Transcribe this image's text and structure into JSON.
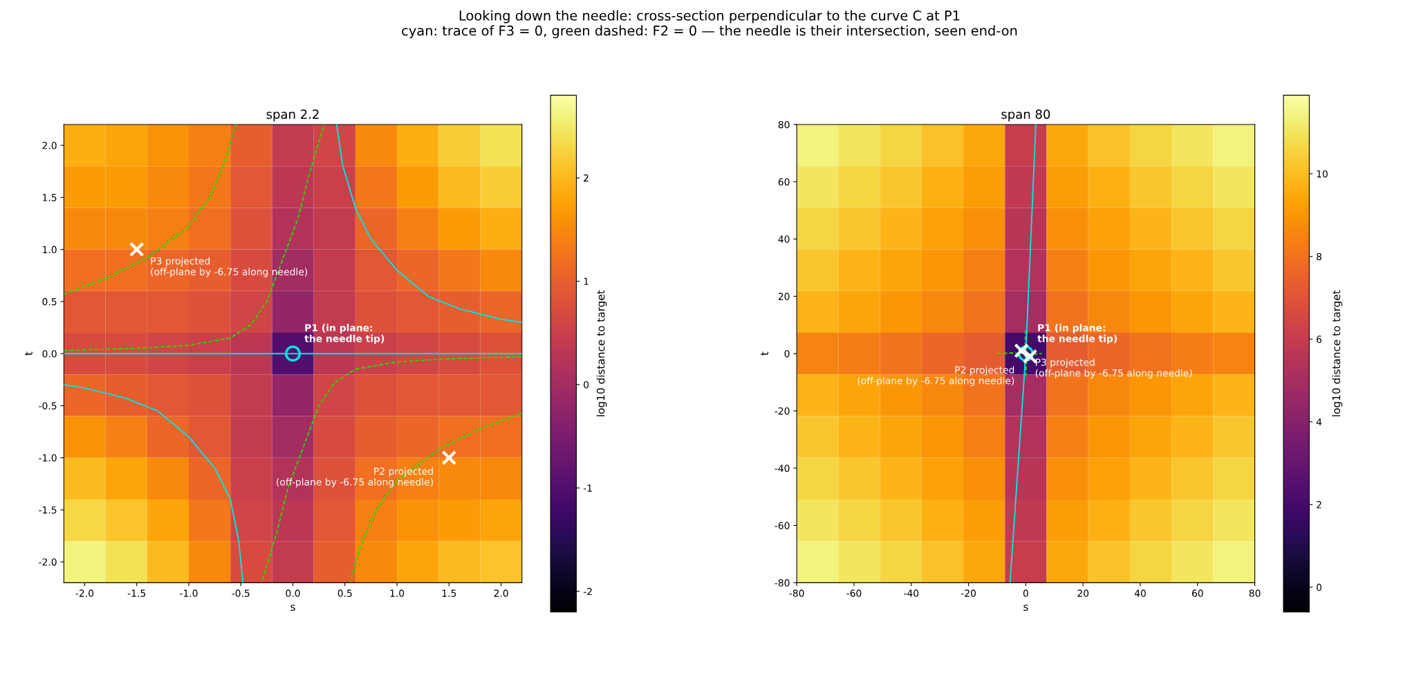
{
  "chart_data": [
    {
      "type": "heatmap",
      "subtitle": "Looking down the needle: cross-section perpendicular to the curve C at P1\ncyan: trace of F3 = 0, green dashed: F2 = 0 — the needle is their intersection, seen end-on",
      "title": "span 2.2",
      "xlabel": "s",
      "ylabel": "t",
      "clabel": "log10 distance to target",
      "xlim": [
        -2.2,
        2.2
      ],
      "ylim": [
        -2.2,
        2.2
      ],
      "xticks": [
        {
          "value": -2,
          "label": "-2.0"
        },
        -1.5,
        {
          "value": -1,
          "label": "-1.0"
        },
        -0.5,
        {
          "value": 0,
          "label": "0.0"
        },
        0.5,
        {
          "value": 1,
          "label": "1.0"
        },
        1.5,
        {
          "value": 2,
          "label": "2.0"
        }
      ],
      "yticks": [
        {
          "value": -2,
          "label": "-2.0"
        },
        -1.5,
        {
          "value": -1,
          "label": "-1.0"
        },
        -0.5,
        {
          "value": 0,
          "label": "0.0"
        },
        0.5,
        {
          "value": 1,
          "label": "1.0"
        },
        1.5,
        {
          "value": 2,
          "label": "2.0"
        }
      ],
      "clim": [
        -2.2,
        2.8
      ],
      "cticks": [
        -2,
        -1,
        0,
        1,
        2
      ],
      "cells": [
        [
          1.9,
          1.8,
          1.6,
          1.4,
          1.0,
          0.4,
          0.6,
          1.5,
          1.9,
          2.2,
          2.4
        ],
        [
          1.7,
          1.7,
          1.5,
          1.3,
          0.9,
          0.3,
          0.5,
          1.3,
          1.7,
          2.0,
          2.2
        ],
        [
          1.5,
          1.5,
          1.4,
          1.2,
          0.8,
          0.2,
          0.4,
          1.1,
          1.4,
          1.7,
          1.9
        ],
        [
          1.2,
          1.2,
          1.1,
          1.0,
          0.7,
          0.0,
          0.4,
          0.9,
          1.1,
          1.3,
          1.5
        ],
        [
          0.9,
          0.9,
          0.9,
          0.8,
          0.6,
          -0.2,
          0.4,
          0.8,
          0.9,
          1.0,
          1.1
        ],
        [
          0.7,
          0.7,
          0.6,
          0.5,
          0.3,
          -1.0,
          0.3,
          0.5,
          0.6,
          0.7,
          0.8
        ],
        [
          1.1,
          1.0,
          0.9,
          0.8,
          0.4,
          -0.2,
          0.6,
          0.8,
          0.9,
          0.9,
          0.9
        ],
        [
          1.6,
          1.4,
          1.1,
          0.9,
          0.4,
          0.0,
          0.7,
          1.0,
          1.1,
          1.2,
          1.2
        ],
        [
          2.0,
          1.8,
          1.5,
          1.1,
          0.5,
          0.2,
          0.8,
          1.2,
          1.4,
          1.5,
          1.5
        ],
        [
          2.3,
          2.1,
          1.8,
          1.3,
          0.6,
          0.3,
          0.9,
          1.4,
          1.6,
          1.7,
          1.8
        ],
        [
          2.6,
          2.4,
          2.0,
          1.5,
          0.7,
          0.4,
          1.0,
          1.5,
          1.8,
          2.0,
          2.1
        ]
      ],
      "series": [
        {
          "type": "line",
          "color": "#00e5e5",
          "line_style": "solid",
          "x": [
            -2.2,
            2.2
          ],
          "values": [
            0,
            0
          ]
        },
        {
          "type": "line",
          "color": "#00e5e5",
          "line_style": "solid",
          "x": [
            0.42,
            0.48,
            0.6,
            0.75,
            1.0,
            1.3,
            1.6,
            2.0,
            2.2
          ],
          "values": [
            2.2,
            1.8,
            1.4,
            1.1,
            0.8,
            0.55,
            0.43,
            0.33,
            0.3
          ]
        },
        {
          "type": "line",
          "color": "#00e5e5",
          "line_style": "solid",
          "x": [
            -2.2,
            -2.0,
            -1.6,
            -1.3,
            -1.0,
            -0.75,
            -0.6,
            -0.52,
            -0.48
          ],
          "values": [
            -0.3,
            -0.33,
            -0.43,
            -0.55,
            -0.8,
            -1.1,
            -1.4,
            -1.8,
            -2.2
          ]
        },
        {
          "type": "line",
          "color": "#22dd00",
          "line_style": "dashed",
          "x": [
            -2.2,
            -1.8,
            -1.4,
            -1.0,
            -0.8,
            -0.65,
            -0.55
          ],
          "values": [
            0.57,
            0.72,
            0.92,
            1.22,
            1.5,
            1.85,
            2.2
          ]
        },
        {
          "type": "line",
          "color": "#22dd00",
          "line_style": "dashed",
          "x": [
            -2.2,
            -1.5,
            -1.0,
            -0.6,
            -0.4,
            -0.25,
            -0.1,
            0.05,
            0.15,
            0.3
          ],
          "values": [
            0.03,
            0.05,
            0.08,
            0.15,
            0.28,
            0.5,
            0.9,
            1.3,
            1.7,
            2.2
          ]
        },
        {
          "type": "line",
          "color": "#22dd00",
          "line_style": "dashed",
          "x": [
            2.2,
            1.5,
            1.0,
            0.6,
            0.4,
            0.25,
            0.1,
            -0.05,
            -0.15,
            -0.3
          ],
          "values": [
            -0.03,
            -0.05,
            -0.08,
            -0.15,
            -0.28,
            -0.5,
            -0.9,
            -1.3,
            -1.7,
            -2.2
          ]
        },
        {
          "type": "line",
          "color": "#22dd00",
          "line_style": "dashed",
          "x": [
            2.2,
            1.8,
            1.4,
            1.0,
            0.8,
            0.65,
            0.55
          ],
          "values": [
            -0.57,
            -0.72,
            -0.92,
            -1.22,
            -1.5,
            -1.85,
            -2.2
          ]
        },
        {
          "type": "scatter",
          "color": "#00e5e5",
          "marker": "circle",
          "x": [
            0.0
          ],
          "values": [
            0.0
          ]
        },
        {
          "type": "scatter",
          "color": "#ffffff",
          "marker": "cross",
          "x": [
            -1.5,
            1.5
          ],
          "values": [
            1.0,
            -1.0
          ]
        }
      ],
      "annotations": [
        {
          "text": "P1 (in plane:\nthe needle tip)",
          "x": 0.0,
          "y": 0.0
        },
        {
          "text": "P3 projected\n(off-plane by -6.75 along needle)",
          "x": -1.5,
          "y": 1.0
        },
        {
          "text": "P2 projected\n(off-plane by -6.75 along needle)",
          "x": 1.5,
          "y": -1.0
        }
      ]
    },
    {
      "type": "heatmap",
      "title": "span 80",
      "xlabel": "s",
      "ylabel": "t",
      "clabel": "log10 distance to target",
      "xlim": [
        -80,
        80
      ],
      "ylim": [
        -80,
        80
      ],
      "xticks": [
        -80,
        -60,
        -40,
        -20,
        0,
        20,
        40,
        60,
        80
      ],
      "yticks": [
        -80,
        -60,
        -40,
        -20,
        0,
        20,
        40,
        60,
        80
      ],
      "clim": [
        -0.6,
        11.9
      ],
      "cticks": [
        0,
        2,
        4,
        6,
        8,
        10
      ],
      "cells": [
        [
          11.4,
          11.0,
          10.6,
          10.1,
          9.5,
          6.0,
          9.5,
          10.1,
          10.6,
          11.0,
          11.4
        ],
        [
          11.0,
          10.6,
          10.2,
          9.7,
          9.2,
          5.8,
          9.2,
          9.7,
          10.2,
          10.6,
          11.0
        ],
        [
          10.6,
          10.2,
          9.8,
          9.3,
          8.8,
          5.6,
          8.8,
          9.3,
          9.8,
          10.2,
          10.6
        ],
        [
          10.2,
          9.8,
          9.4,
          9.0,
          8.4,
          5.4,
          8.4,
          9.0,
          9.4,
          9.8,
          10.2
        ],
        [
          9.8,
          9.4,
          9.0,
          8.6,
          8.0,
          5.0,
          8.0,
          8.6,
          9.0,
          9.4,
          9.8
        ],
        [
          8.5,
          8.3,
          8.0,
          7.7,
          7.3,
          2.0,
          7.3,
          7.7,
          8.0,
          8.3,
          8.5
        ],
        [
          9.8,
          9.4,
          9.0,
          8.6,
          8.0,
          5.0,
          8.0,
          8.6,
          9.0,
          9.4,
          9.8
        ],
        [
          10.2,
          9.8,
          9.4,
          9.0,
          8.4,
          5.4,
          8.4,
          9.0,
          9.4,
          9.8,
          10.2
        ],
        [
          10.6,
          10.2,
          9.8,
          9.3,
          8.8,
          5.6,
          8.8,
          9.3,
          9.8,
          10.2,
          10.6
        ],
        [
          11.0,
          10.6,
          10.2,
          9.7,
          9.2,
          5.8,
          9.2,
          9.7,
          10.2,
          10.6,
          11.0
        ],
        [
          11.4,
          11.0,
          10.6,
          10.1,
          9.5,
          6.0,
          9.5,
          10.1,
          10.6,
          11.0,
          11.4
        ]
      ],
      "series": [
        {
          "type": "line",
          "color": "#00e5e5",
          "line_style": "solid",
          "x": [
            -5.5,
            0,
            3.5
          ],
          "values": [
            -80,
            0,
            80
          ]
        },
        {
          "type": "line",
          "color": "#22dd00",
          "line_style": "dashed",
          "x": [
            -10,
            -5,
            0,
            3,
            5.5
          ],
          "values": [
            0,
            0.2,
            0,
            -0.2,
            0
          ]
        },
        {
          "type": "line",
          "color": "#22dd00",
          "line_style": "dashed",
          "x": [
            0,
            0.2,
            0,
            -0.2,
            0
          ],
          "values": [
            -8,
            -3,
            0,
            4,
            9
          ]
        },
        {
          "type": "scatter",
          "color": "#00e5e5",
          "marker": "circle",
          "x": [
            0.0
          ],
          "values": [
            0.0
          ]
        },
        {
          "type": "scatter",
          "color": "#ffffff",
          "marker": "cross",
          "x": [
            -1.5,
            1.5
          ],
          "values": [
            1.0,
            -1.0
          ]
        }
      ],
      "annotations": [
        {
          "text": "P1 (in plane:\nthe needle tip)",
          "x": 0.0,
          "y": 0.0
        },
        {
          "text": "P3 projected\n(off-plane by -6.75 along needle)",
          "x": -1.5,
          "y": 1.0
        },
        {
          "text": "P2 projected\n(off-plane by -6.75 along needle)",
          "x": 1.5,
          "y": -1.0
        }
      ]
    }
  ]
}
